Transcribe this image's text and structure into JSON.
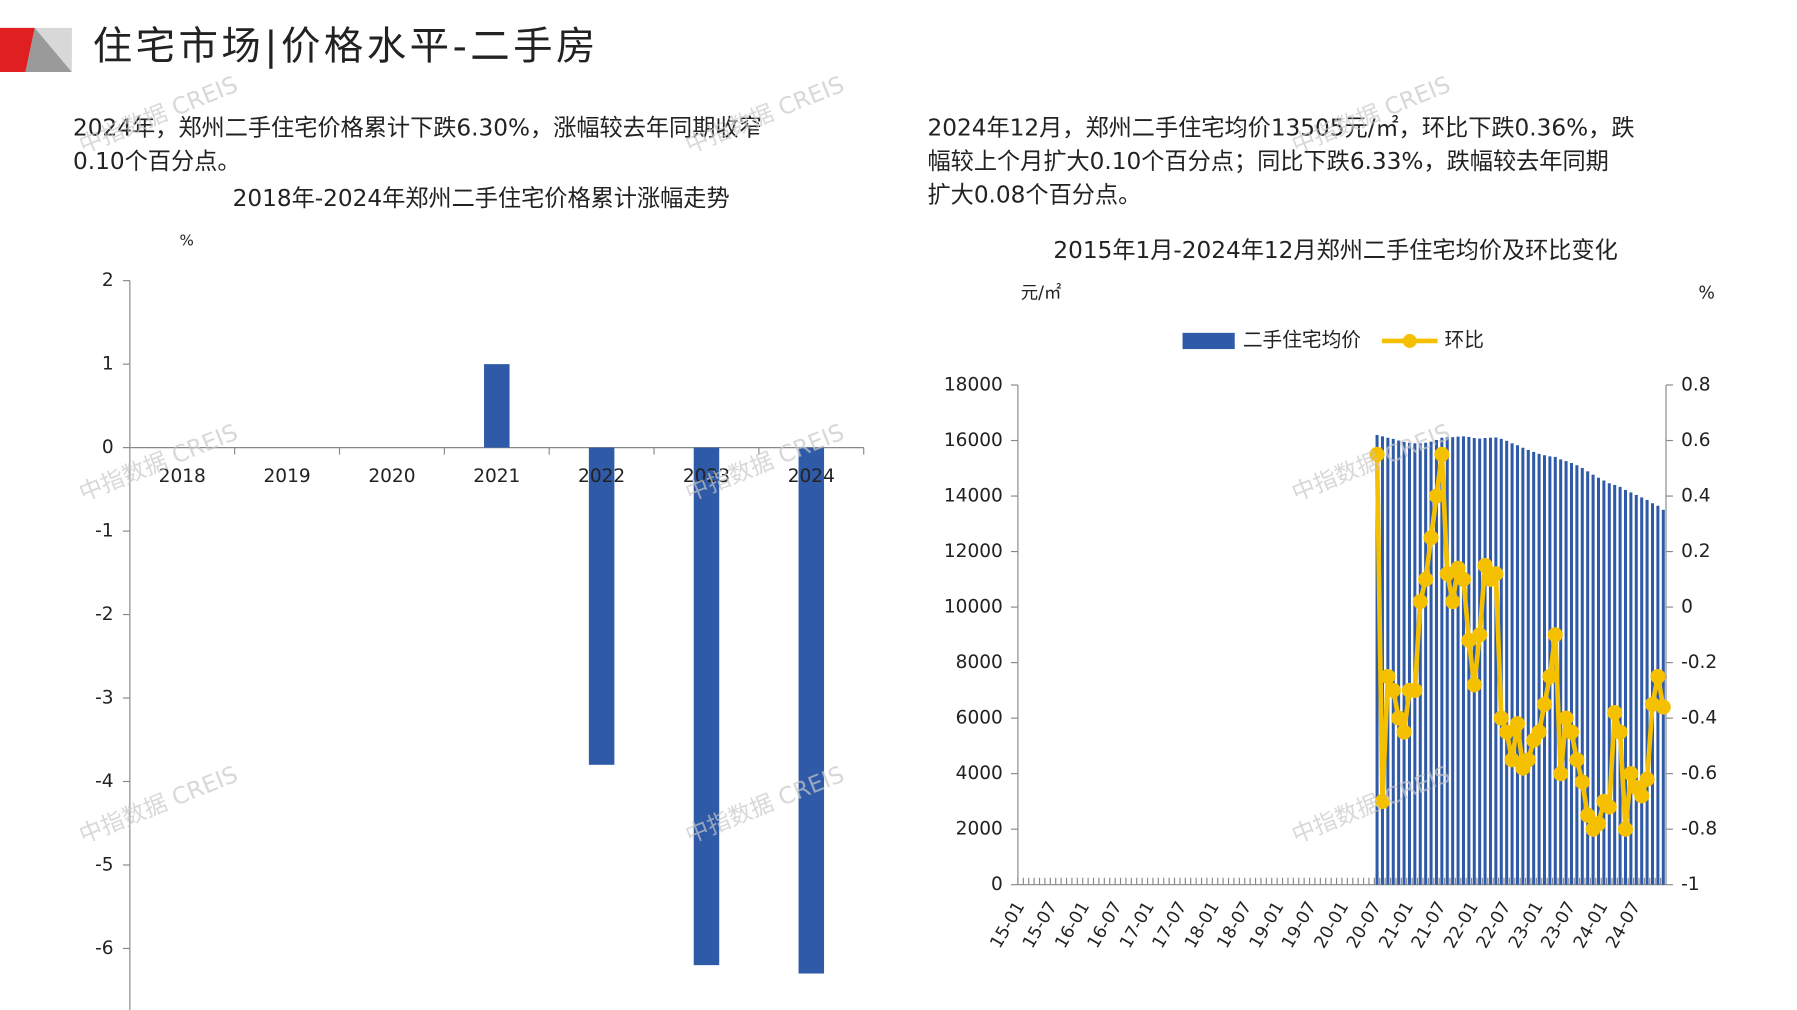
{
  "header": {
    "title": "住宅市场|价格水平-二手房"
  },
  "text_left": [
    "2024年，郑州二手住宅价格累计下跌6.30%，涨幅较去年同期收窄",
    "0.10个百分点。"
  ],
  "text_right": [
    "2024年12月，郑州二手住宅均价13505元/㎡，环比下跌0.36%，跌",
    "幅较上个月扩大0.10个百分点；同比下跌6.33%，跌幅较去年同期",
    "扩大0.08个百分点。"
  ],
  "watermark": "中指数据 CREIS",
  "chart_data": [
    {
      "type": "bar",
      "title": "2018年-2024年郑州二手住宅价格累计涨幅走势",
      "y_label": "%",
      "categories": [
        "2018",
        "2019",
        "2020",
        "2021",
        "2022",
        "2023",
        "2024"
      ],
      "values": [
        0,
        0,
        0,
        1.0,
        -3.8,
        -6.2,
        -6.3
      ],
      "color": "#2e5aa8",
      "ylim": [
        -6.8,
        2
      ],
      "yticks": [
        -6,
        -5,
        -4,
        -3,
        -2,
        -1,
        0,
        1,
        2
      ]
    },
    {
      "type": "bar_line",
      "title": "2015年1月-2024年12月郑州二手住宅均价及环比变化",
      "y_label": "元/㎡",
      "y2_label": "%",
      "categories": [
        "15-01",
        null,
        null,
        null,
        null,
        null,
        "15-07",
        null,
        null,
        null,
        null,
        null,
        "16-01",
        null,
        null,
        null,
        null,
        null,
        "16-07",
        null,
        null,
        null,
        null,
        null,
        "17-01",
        null,
        null,
        null,
        null,
        null,
        "17-07",
        null,
        null,
        null,
        null,
        null,
        "18-01",
        null,
        null,
        null,
        null,
        null,
        "18-07",
        null,
        null,
        null,
        null,
        null,
        "19-01",
        null,
        null,
        null,
        null,
        null,
        "19-07",
        null,
        null,
        null,
        null,
        null,
        "20-01",
        null,
        null,
        null,
        null,
        null,
        "20-07",
        null,
        null,
        null,
        null,
        null,
        "21-01",
        null,
        null,
        null,
        null,
        null,
        "21-07",
        null,
        null,
        null,
        null,
        null,
        "22-01",
        null,
        null,
        null,
        null,
        null,
        "22-07",
        null,
        null,
        null,
        null,
        null,
        "23-01",
        null,
        null,
        null,
        null,
        null,
        "23-07",
        null,
        null,
        null,
        null,
        null,
        "24-01",
        null,
        null,
        null,
        null,
        null,
        "24-07",
        null,
        null,
        null,
        null,
        null
      ],
      "series": [
        {
          "name": "二手住宅均价",
          "type": "bar",
          "color": "#2e5aa8",
          "values": [
            null,
            null,
            null,
            null,
            null,
            null,
            null,
            null,
            null,
            null,
            null,
            null,
            null,
            null,
            null,
            null,
            null,
            null,
            null,
            null,
            null,
            null,
            null,
            null,
            null,
            null,
            null,
            null,
            null,
            null,
            null,
            null,
            null,
            null,
            null,
            null,
            null,
            null,
            null,
            null,
            null,
            null,
            null,
            null,
            null,
            null,
            null,
            null,
            null,
            null,
            null,
            null,
            null,
            null,
            null,
            null,
            null,
            null,
            null,
            null,
            null,
            null,
            null,
            null,
            null,
            null,
            16200,
            16150,
            16100,
            16060,
            16000,
            15950,
            15920,
            15900,
            15900,
            15920,
            15960,
            16020,
            16100,
            16120,
            16120,
            16140,
            16150,
            16130,
            16090,
            16070,
            16090,
            16100,
            16110,
            16060,
            15990,
            15900,
            15830,
            15740,
            15660,
            15590,
            15520,
            15470,
            15430,
            15410,
            15320,
            15260,
            15190,
            15110,
            15010,
            14890,
            14770,
            14660,
            14560,
            14460,
            14400,
            14330,
            14220,
            14130,
            14040,
            13950,
            13860,
            13740,
            13650,
            13505
          ]
        },
        {
          "name": "环比",
          "type": "line",
          "axis": "y2",
          "color": "#f5c000",
          "values": [
            null,
            null,
            null,
            null,
            null,
            null,
            null,
            null,
            null,
            null,
            null,
            null,
            null,
            null,
            null,
            null,
            null,
            null,
            null,
            null,
            null,
            null,
            null,
            null,
            null,
            null,
            null,
            null,
            null,
            null,
            null,
            null,
            null,
            null,
            null,
            null,
            null,
            null,
            null,
            null,
            null,
            null,
            null,
            null,
            null,
            null,
            null,
            null,
            null,
            null,
            null,
            null,
            null,
            null,
            null,
            null,
            null,
            null,
            null,
            null,
            null,
            null,
            null,
            null,
            null,
            null,
            0.55,
            -0.7,
            -0.25,
            -0.3,
            -0.4,
            -0.45,
            -0.3,
            -0.3,
            0.02,
            0.1,
            0.25,
            0.4,
            0.55,
            0.12,
            0.02,
            0.14,
            0.1,
            -0.12,
            -0.28,
            -0.1,
            0.15,
            0.1,
            0.12,
            -0.4,
            -0.45,
            -0.55,
            -0.42,
            -0.58,
            -0.55,
            -0.48,
            -0.45,
            -0.35,
            -0.25,
            -0.1,
            -0.6,
            -0.4,
            -0.45,
            -0.55,
            -0.63,
            -0.75,
            -0.8,
            -0.78,
            -0.7,
            -0.72,
            -0.38,
            -0.45,
            -0.8,
            -0.6,
            -0.65,
            -0.68,
            -0.62,
            -0.35,
            -0.25,
            -0.36
          ]
        }
      ],
      "ylim": [
        0,
        18000
      ],
      "yticks": [
        0,
        2000,
        4000,
        6000,
        8000,
        10000,
        12000,
        14000,
        16000,
        18000
      ],
      "y2lim": [
        -1,
        0.8
      ],
      "y2ticks": [
        -1,
        -0.8,
        -0.6,
        -0.4,
        -0.2,
        0,
        0.2,
        0.4,
        0.6,
        0.8
      ]
    }
  ]
}
